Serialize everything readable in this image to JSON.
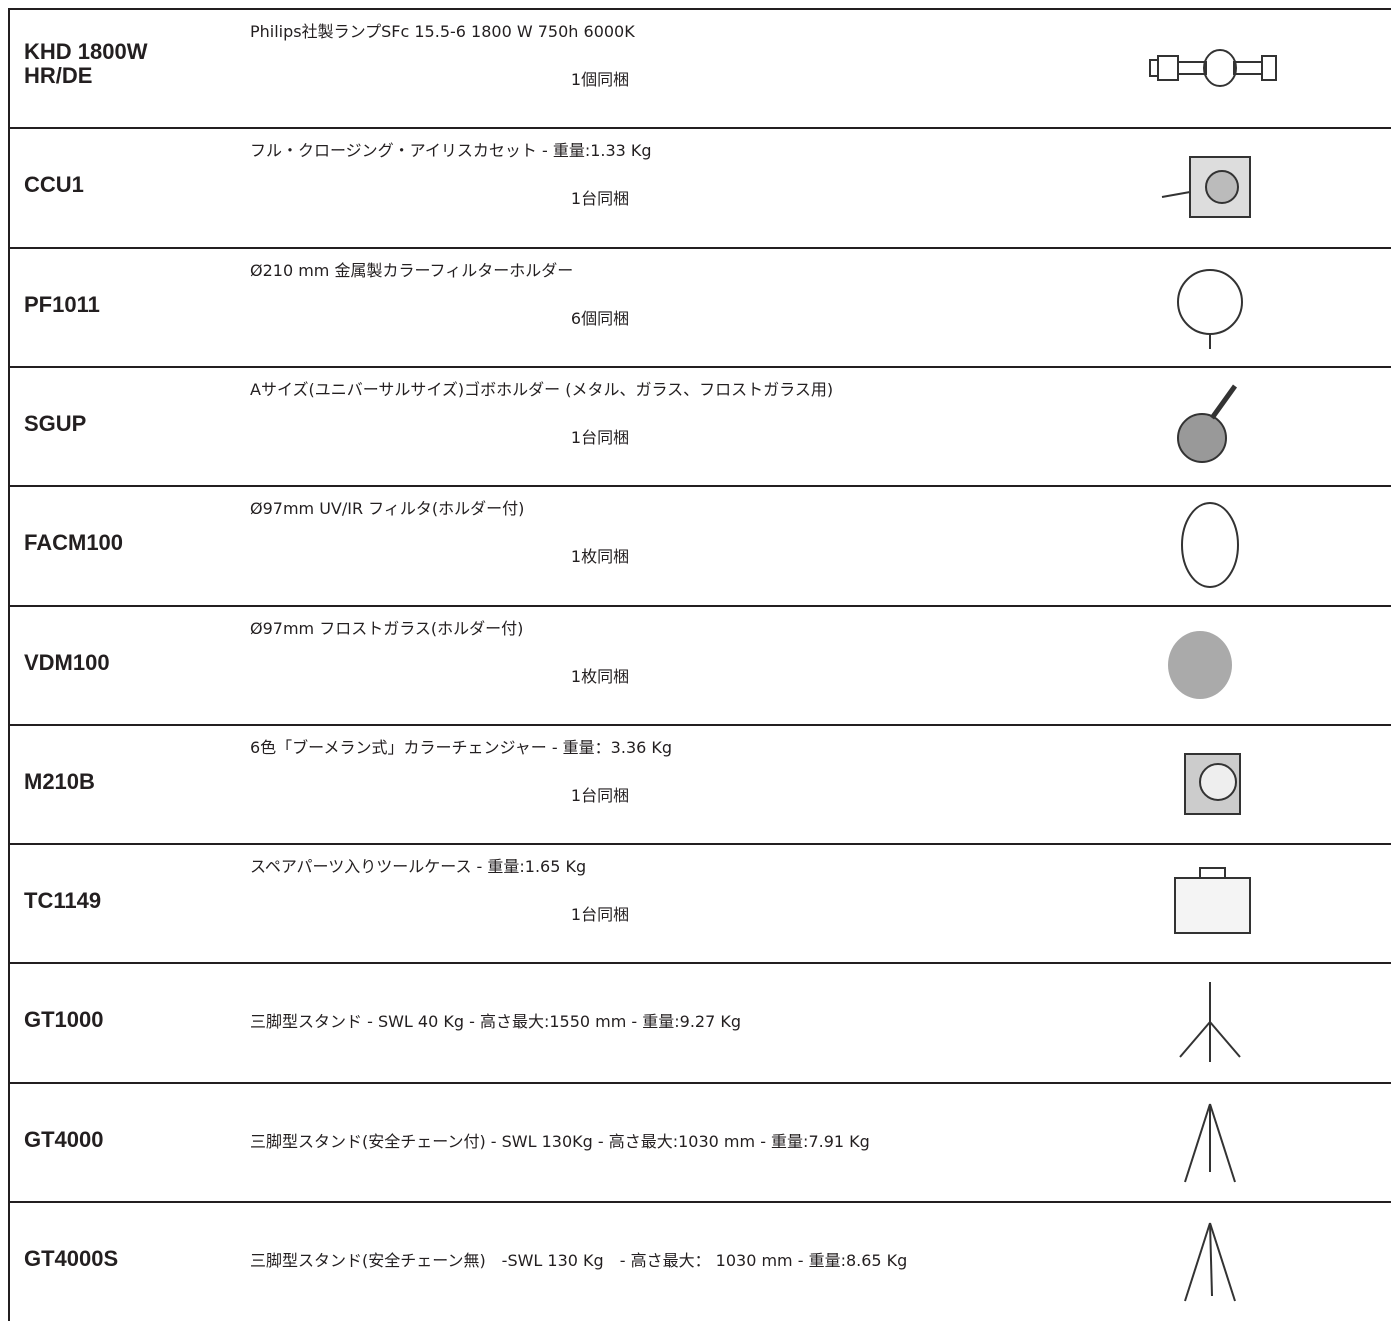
{
  "table": {
    "rows": [
      {
        "code": "KHD 1800W HR/DE",
        "description": "Philips社製ランプSFc 15.5-6 1800 W 750h 6000K",
        "quantity": "1個同梱"
      },
      {
        "code": "CCU1",
        "description": "フル・クロージング・アイリスカセット - 重量:1.33 Kg",
        "quantity": "1台同梱"
      },
      {
        "code": "PF1011",
        "description": "Ø210 mm 金属製カラーフィルターホルダー",
        "quantity": "6個同梱"
      },
      {
        "code": "SGUP",
        "description": "Aサイズ(ユニバーサルサイズ)ゴボホルダー (メタル、ガラス、フロストガラス用)",
        "quantity": "1台同梱"
      },
      {
        "code": "FACM100",
        "description": "Ø97mm UV/IR フィルタ(ホルダー付)",
        "quantity": "1枚同梱"
      },
      {
        "code": "VDM100",
        "description": "Ø97mm フロストガラス(ホルダー付)",
        "quantity": "1枚同梱"
      },
      {
        "code": "M210B",
        "description": "6色「ブーメラン式」カラーチェンジャー - 重量：3.36 Kg",
        "quantity": "1台同梱"
      },
      {
        "code": "TC1149",
        "description": "スペアパーツ入りツールケース - 重量:1.65 Kg",
        "quantity": "1台同梱"
      },
      {
        "code": "GT1000",
        "description": "三脚型スタンド - SWL 40 Kg - 高さ最大:1550 mm - 重量:9.27 Kg"
      },
      {
        "code": "GT4000",
        "description": "三脚型スタンド(安全チェーン付) - SWL 130Kg - 高さ最大:1030 mm - 重量:7.91 Kg"
      },
      {
        "code": "GT4000S",
        "description": "三脚型スタンド(安全チェーン無)　-SWL 130 Kg　-  高さ最大： 1030 mm - 重量:8.65 Kg"
      }
    ]
  }
}
